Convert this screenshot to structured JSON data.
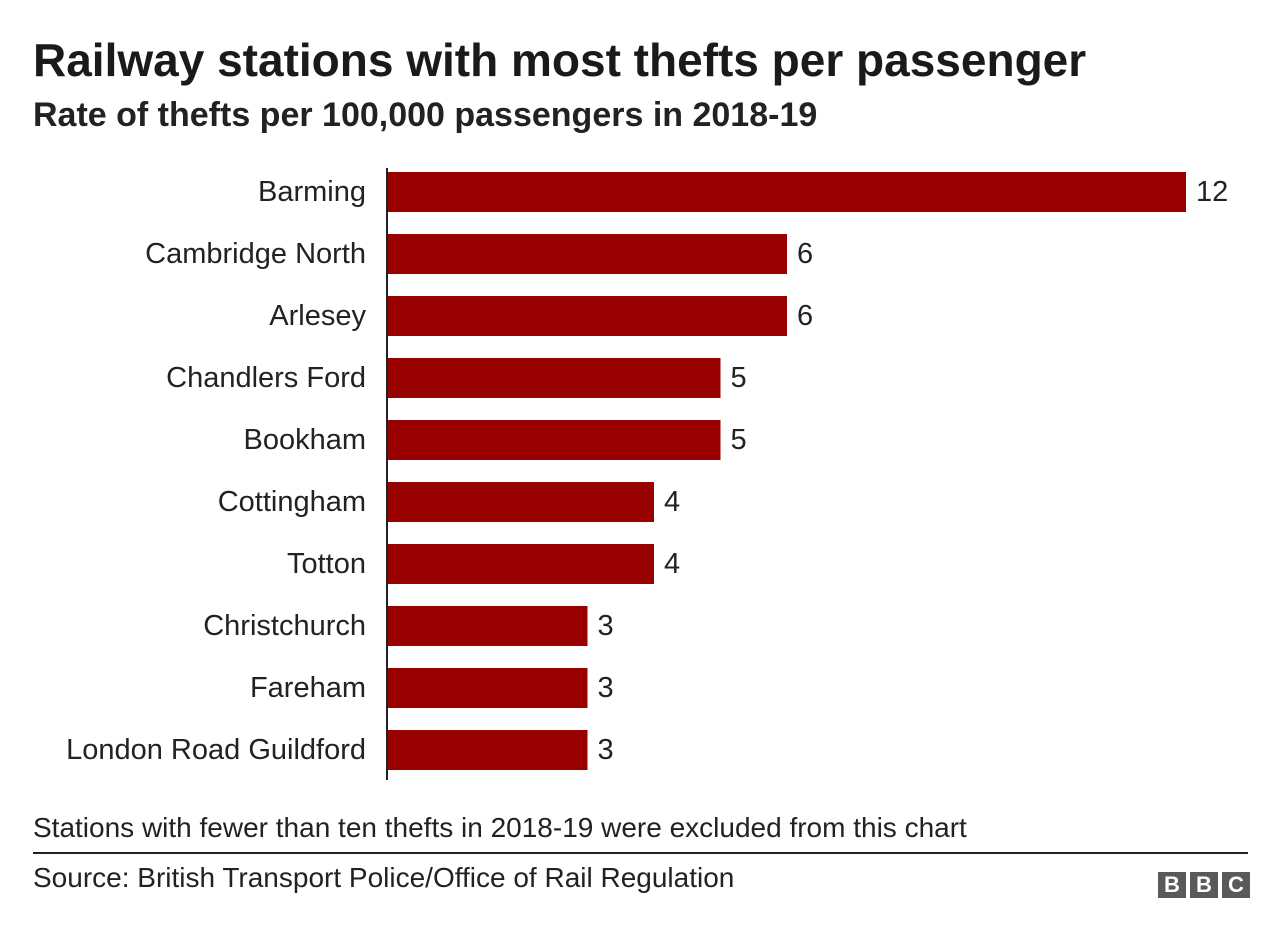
{
  "chart_data": {
    "type": "bar",
    "orientation": "horizontal",
    "title": "Railway stations with most thefts per passenger",
    "subtitle": "Rate of thefts per 100,000 passengers in 2018-19",
    "categories": [
      "Barming",
      "Cambridge North",
      "Arlesey",
      "Chandlers Ford",
      "Bookham",
      "Cottingham",
      "Totton",
      "Christchurch",
      "Fareham",
      "London Road Guildford"
    ],
    "values": [
      12,
      6,
      6,
      5,
      5,
      4,
      4,
      3,
      3,
      3
    ],
    "xlim": [
      0,
      12
    ],
    "grid": false,
    "legend": "none",
    "bar_color": "#990000"
  },
  "footer": {
    "note": "Stations with fewer than ten thefts in 2018-19 were excluded from this chart",
    "source": "Source: British Transport Police/Office of Rail Regulation",
    "logo_letters": [
      "B",
      "B",
      "C"
    ]
  }
}
